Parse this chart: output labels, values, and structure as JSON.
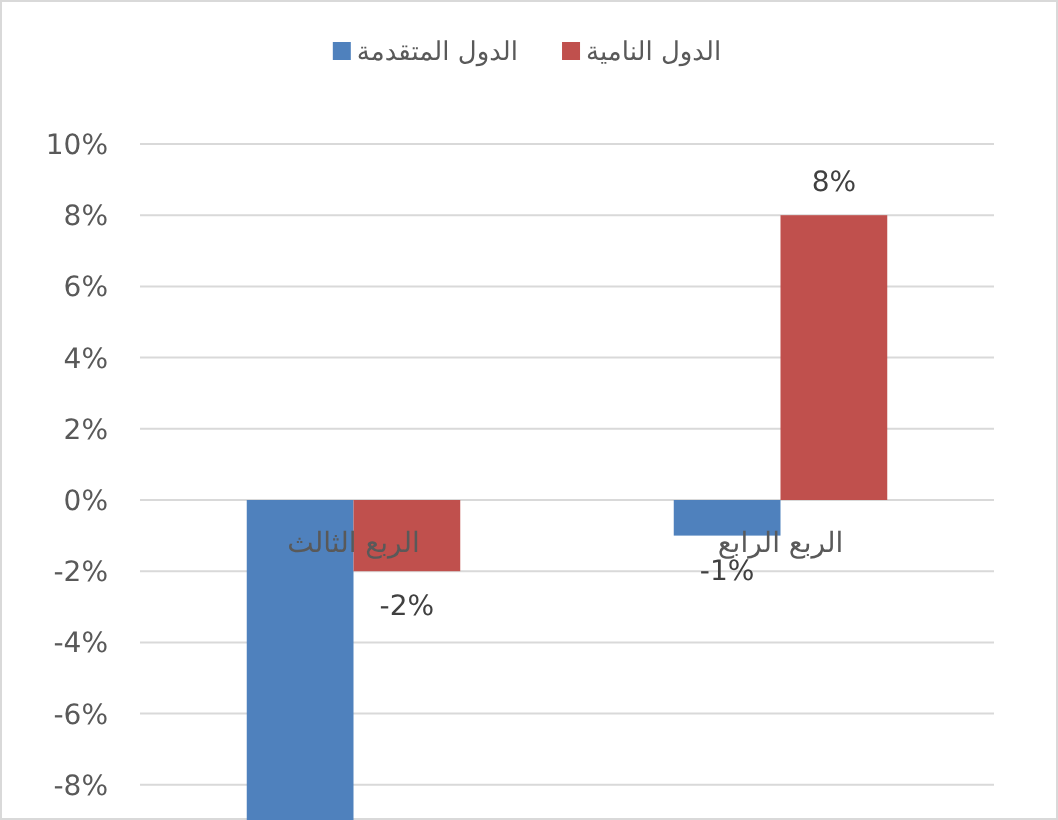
{
  "chart_data": {
    "type": "bar",
    "categories": [
      "الربع الثالث",
      "الربع الرابع"
    ],
    "series": [
      {
        "name": "الدول المتقدمة",
        "color": "#4f81bd",
        "values": [
          -9,
          -1
        ],
        "value_labels": [
          null,
          "-1%"
        ]
      },
      {
        "name": "الدول النامية",
        "color": "#c0504d",
        "values": [
          -2,
          8
        ],
        "value_labels": [
          "-2%",
          "8%"
        ]
      }
    ],
    "ylim": [
      -9,
      10
    ],
    "yticks": [
      {
        "value": -8,
        "label": "-8%"
      },
      {
        "value": -6,
        "label": "-6%"
      },
      {
        "value": -4,
        "label": "-4%"
      },
      {
        "value": -2,
        "label": "-2%"
      },
      {
        "value": 0,
        "label": "0%"
      },
      {
        "value": 2,
        "label": "2%"
      },
      {
        "value": 4,
        "label": "4%"
      },
      {
        "value": 6,
        "label": "6%"
      },
      {
        "value": 8,
        "label": "8%"
      },
      {
        "value": 10,
        "label": "10%"
      }
    ],
    "grid": "y",
    "legend": "top"
  }
}
